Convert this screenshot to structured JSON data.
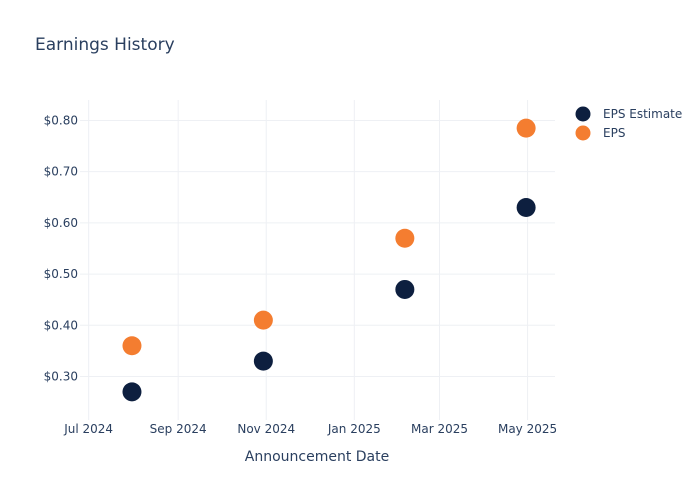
{
  "chart_data": {
    "type": "scatter",
    "title": "Earnings History",
    "xlabel": "Announcement Date",
    "ylabel": "",
    "x_ticks": [
      {
        "date": "2024-07-01",
        "label": "Jul 2024"
      },
      {
        "date": "2024-09-01",
        "label": "Sep 2024"
      },
      {
        "date": "2024-11-01",
        "label": "Nov 2024"
      },
      {
        "date": "2025-01-01",
        "label": "Jan 2025"
      },
      {
        "date": "2025-03-01",
        "label": "Mar 2025"
      },
      {
        "date": "2025-05-01",
        "label": "May 2025"
      }
    ],
    "y_ticks": [
      {
        "value": 0.3,
        "label": "$0.30"
      },
      {
        "value": 0.4,
        "label": "$0.40"
      },
      {
        "value": 0.5,
        "label": "$0.50"
      },
      {
        "value": 0.6,
        "label": "$0.60"
      },
      {
        "value": 0.7,
        "label": "$0.70"
      },
      {
        "value": 0.8,
        "label": "$0.80"
      }
    ],
    "xlim": [
      "2024-06-25",
      "2025-05-20"
    ],
    "ylim": [
      0.215,
      0.84
    ],
    "grid": true,
    "legend_position": "top-right",
    "series": [
      {
        "name": "EPS Estimate",
        "color": "#0d1f3f",
        "points": [
          {
            "x": "2024-07-31",
            "y": 0.27
          },
          {
            "x": "2024-10-30",
            "y": 0.33
          },
          {
            "x": "2025-02-05",
            "y": 0.47
          },
          {
            "x": "2025-04-30",
            "y": 0.63
          }
        ]
      },
      {
        "name": "EPS",
        "color": "#f47d30",
        "points": [
          {
            "x": "2024-07-31",
            "y": 0.36
          },
          {
            "x": "2024-10-30",
            "y": 0.41
          },
          {
            "x": "2025-02-05",
            "y": 0.57
          },
          {
            "x": "2025-04-30",
            "y": 0.785
          }
        ]
      }
    ]
  }
}
